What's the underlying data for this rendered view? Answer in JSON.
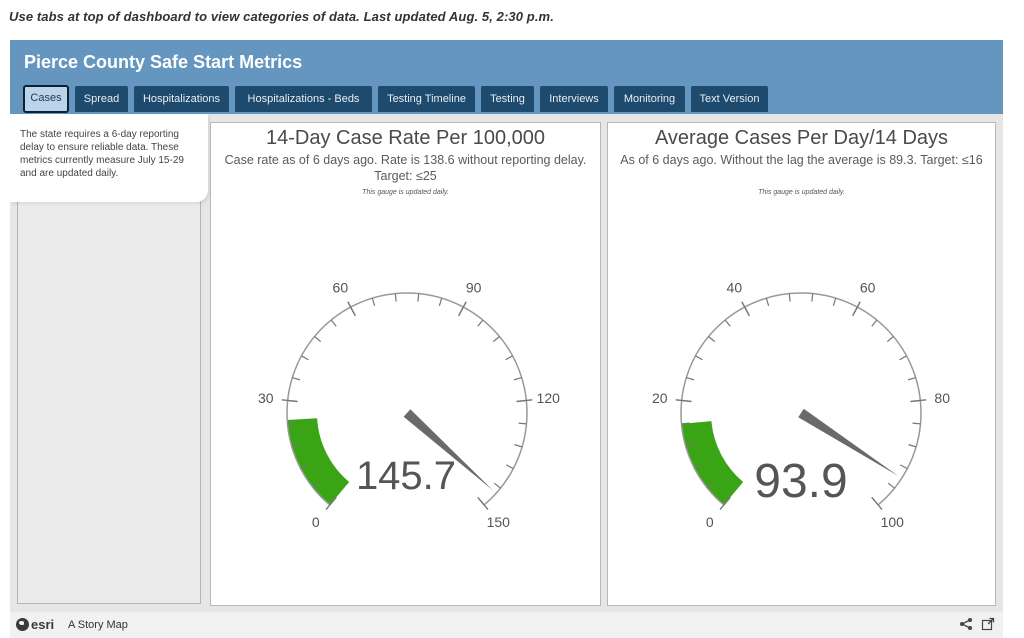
{
  "top_note": "Use tabs at top of dashboard to view categories of data. Last updated Aug. 5, 2:30 p.m.",
  "header": {
    "title": "Pierce County Safe Start Metrics"
  },
  "tabs": [
    {
      "label": "Cases",
      "active": true
    },
    {
      "label": "Spread"
    },
    {
      "label": "Hospitalizations"
    },
    {
      "label": "Hospitalizations - Beds"
    },
    {
      "label": "Testing Timeline"
    },
    {
      "label": "Testing"
    },
    {
      "label": "Interviews"
    },
    {
      "label": "Monitoring"
    },
    {
      "label": "Text Version"
    }
  ],
  "sidebar": {
    "note": "The state requires a 6-day reporting delay to ensure reliable data. These metrics currently measure July 15-29 and are updated daily."
  },
  "cards": [
    {
      "title": "14-Day Case Rate Per 100,000",
      "subtitle": "Case rate as of 6 days ago.  Rate is 138.6 without reporting delay. Target: ≤25",
      "note": "This gauge is updated daily."
    },
    {
      "title": "Average Cases Per Day/14 Days",
      "subtitle": "As of 6 days ago. Without the lag the average is 89.3. Target: ≤16",
      "note": "This gauge is updated daily."
    }
  ],
  "gauges": [
    {
      "min": 0,
      "max": 150,
      "value": 145.7,
      "value_label": "145.7",
      "target": 25,
      "major_labels": [
        "0",
        "30",
        "60",
        "90",
        "120",
        "150"
      ],
      "major_values": [
        0,
        30,
        60,
        90,
        120,
        150
      ],
      "minor_step": 6,
      "fill_color": "#3aa514",
      "needle_color": "#6a6a6a"
    },
    {
      "min": 0,
      "max": 100,
      "value": 93.9,
      "value_label": "93.9",
      "target": 16,
      "major_labels": [
        "0",
        "20",
        "40",
        "60",
        "80",
        "100"
      ],
      "major_values": [
        0,
        20,
        40,
        60,
        80,
        100
      ],
      "minor_step": 4,
      "fill_color": "#3aa514",
      "needle_color": "#6a6a6a"
    }
  ],
  "footer": {
    "brand": "esri",
    "label": "A Story Map",
    "icons": [
      "share-icon",
      "external-link-icon"
    ]
  }
}
